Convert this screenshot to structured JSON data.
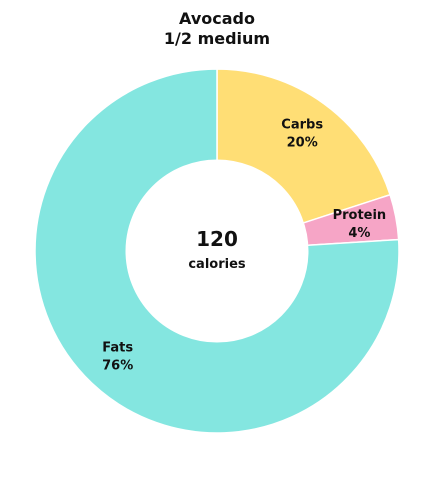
{
  "chart_data": {
    "type": "pie",
    "title": "Avocado",
    "subtitle": "1/2 medium",
    "center_value": "120",
    "center_label": "calories",
    "slices": [
      {
        "label": "Carbs",
        "value": 20,
        "value_label": "20%",
        "color": "#FFDE75"
      },
      {
        "label": "Protein",
        "value": 4,
        "value_label": "4%",
        "color": "#F6A5C6"
      },
      {
        "label": "Fats",
        "value": 76,
        "value_label": "76%",
        "color": "#84E6E0"
      }
    ]
  }
}
